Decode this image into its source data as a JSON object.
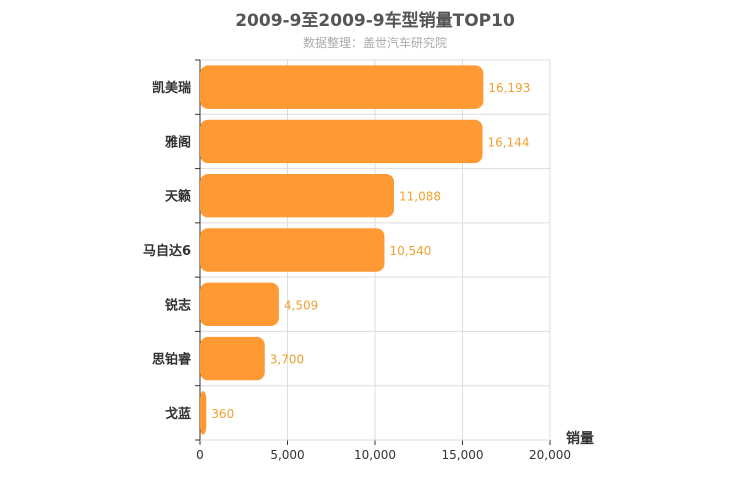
{
  "chart_data": {
    "type": "bar",
    "orientation": "horizontal",
    "title": "2009-9至2009-9车型销量TOP10",
    "subtitle": "数据整理：盖世汽车研究院",
    "categories": [
      "凯美瑞",
      "雅阁",
      "天籁",
      "马自达6",
      "锐志",
      "思铂睿",
      "戈蓝"
    ],
    "values": [
      16193,
      16144,
      11088,
      10540,
      4509,
      3700,
      360
    ],
    "value_labels": [
      "16,193",
      "16,144",
      "11,088",
      "10,540",
      "4,509",
      "3,700",
      "360"
    ],
    "xlabel": "销量",
    "ylabel": "",
    "xlim": [
      0,
      20000
    ],
    "ticks": [
      0,
      5000,
      10000,
      15000,
      20000
    ],
    "tick_labels": [
      "0",
      "5,000",
      "10,000",
      "15,000",
      "20,000"
    ],
    "grid": true,
    "bar_color": "#ff9933",
    "label_color": "#f0a030"
  }
}
